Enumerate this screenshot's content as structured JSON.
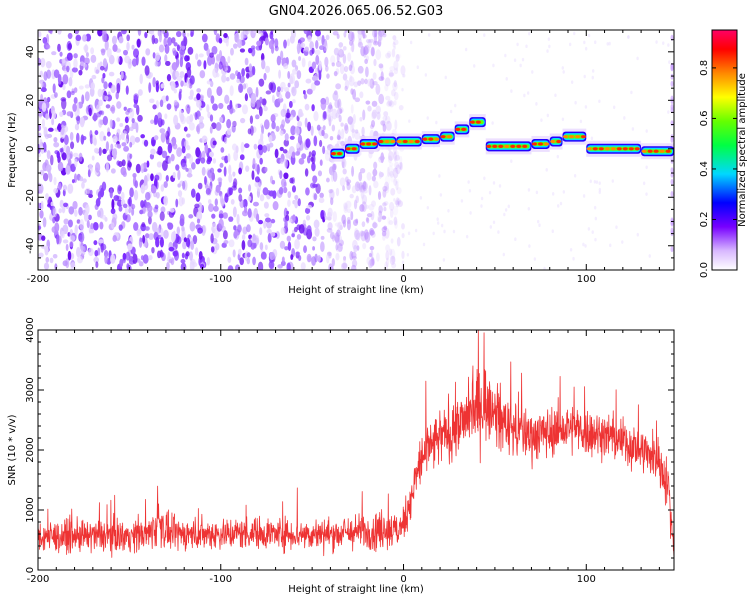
{
  "chart_data": [
    {
      "type": "heatmap",
      "title": "GN04.2026.065.06.52.G03",
      "xlabel": "Height of straight line (km)",
      "ylabel": "Frequency (Hz)",
      "xlim": [
        -200,
        148
      ],
      "ylim": [
        -50,
        49
      ],
      "xticks": [
        -200,
        -100,
        0,
        100
      ],
      "yticks": [
        -40,
        -20,
        0,
        20,
        40
      ],
      "colorbar": {
        "label": "Normalized spectral amplitude",
        "range": [
          0,
          0.95
        ],
        "ticks": [
          0.0,
          0.2,
          0.4,
          0.6,
          0.8
        ],
        "tick_labels": [
          "0.0",
          "0.2",
          "0.4",
          "0.6",
          "0.8"
        ]
      },
      "noise_region": {
        "x_from": -200,
        "x_to": -10,
        "color": "#8822ff"
      },
      "track_segments": [
        {
          "x_start": -40,
          "x_end": -32,
          "freq": -2
        },
        {
          "x_start": -32,
          "x_end": -24,
          "freq": 0
        },
        {
          "x_start": -24,
          "x_end": -14,
          "freq": 2
        },
        {
          "x_start": -14,
          "x_end": -4,
          "freq": 3
        },
        {
          "x_start": -4,
          "x_end": 10,
          "freq": 3
        },
        {
          "x_start": 10,
          "x_end": 20,
          "freq": 4
        },
        {
          "x_start": 20,
          "x_end": 28,
          "freq": 5
        },
        {
          "x_start": 28,
          "x_end": 36,
          "freq": 8
        },
        {
          "x_start": 36,
          "x_end": 45,
          "freq": 11
        },
        {
          "x_start": 45,
          "x_end": 70,
          "freq": 1
        },
        {
          "x_start": 70,
          "x_end": 80,
          "freq": 2
        },
        {
          "x_start": 80,
          "x_end": 87,
          "freq": 3
        },
        {
          "x_start": 87,
          "x_end": 100,
          "freq": 5
        },
        {
          "x_start": 100,
          "x_end": 130,
          "freq": 0
        },
        {
          "x_start": 130,
          "x_end": 148,
          "freq": -1
        }
      ]
    },
    {
      "type": "line",
      "xlabel": "Height of straight line (km)",
      "ylabel": "SNR (10 * v/v)",
      "xlim": [
        -200,
        148
      ],
      "ylim": [
        0,
        4000
      ],
      "xticks": [
        -200,
        -100,
        0,
        100
      ],
      "yticks": [
        0,
        1000,
        2000,
        3000,
        4000
      ],
      "series": [
        {
          "name": "SNR",
          "color": "#ee3333",
          "envelope_x": [
            -200,
            -180,
            -160,
            -140,
            -134,
            -128,
            -110,
            -80,
            -60,
            -40,
            -20,
            -10,
            -2,
            0,
            5,
            10,
            20,
            30,
            40,
            45,
            50,
            60,
            70,
            80,
            90,
            100,
            110,
            120,
            130,
            140,
            145,
            148
          ],
          "envelope_mean": [
            550,
            560,
            570,
            580,
            800,
            600,
            600,
            620,
            600,
            600,
            650,
            680,
            650,
            800,
            1300,
            1900,
            2200,
            2400,
            2700,
            2800,
            2600,
            2350,
            2250,
            2300,
            2350,
            2300,
            2250,
            2150,
            2000,
            1800,
            1400,
            300
          ],
          "envelope_spread": [
            450,
            450,
            450,
            450,
            700,
            450,
            450,
            450,
            450,
            450,
            500,
            600,
            500,
            500,
            700,
            800,
            800,
            900,
            1000,
            1100,
            900,
            800,
            750,
            700,
            700,
            700,
            650,
            650,
            650,
            650,
            700,
            400
          ]
        }
      ]
    }
  ]
}
